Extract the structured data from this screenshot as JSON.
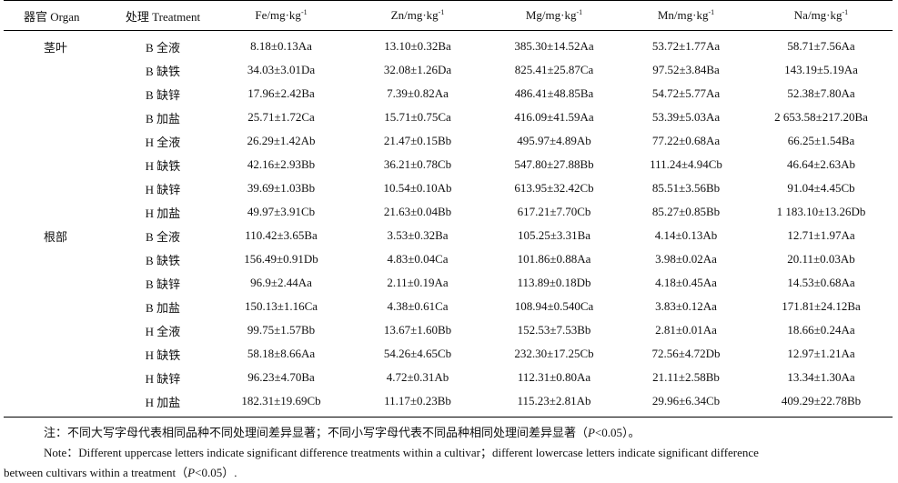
{
  "table": {
    "headers": [
      {
        "main": "器官 Organ",
        "sup": ""
      },
      {
        "main": "处理 Treatment",
        "sup": ""
      },
      {
        "main": "Fe/mg·kg",
        "sup": "-1"
      },
      {
        "main": "Zn/mg·kg",
        "sup": "-1"
      },
      {
        "main": "Mg/mg·kg",
        "sup": "-1"
      },
      {
        "main": "Mn/mg·kg",
        "sup": "-1"
      },
      {
        "main": "Na/mg·kg",
        "sup": "-1"
      }
    ],
    "rows": [
      {
        "organ": "茎叶",
        "treatment": "B 全液",
        "fe": "8.18±0.13Aa",
        "zn": "13.10±0.32Ba",
        "mg": "385.30±14.52Aa",
        "mn": "53.72±1.77Aa",
        "na": "58.71±7.56Aa"
      },
      {
        "organ": "",
        "treatment": "B 缺铁",
        "fe": "34.03±3.01Da",
        "zn": "32.08±1.26Da",
        "mg": "825.41±25.87Ca",
        "mn": "97.52±3.84Ba",
        "na": "143.19±5.19Aa"
      },
      {
        "organ": "",
        "treatment": "B 缺锌",
        "fe": "17.96±2.42Ba",
        "zn": "7.39±0.82Aa",
        "mg": "486.41±48.85Ba",
        "mn": "54.72±5.77Aa",
        "na": "52.38±7.80Aa"
      },
      {
        "organ": "",
        "treatment": "B 加盐",
        "fe": "25.71±1.72Ca",
        "zn": "15.71±0.75Ca",
        "mg": "416.09±41.59Aa",
        "mn": "53.39±5.03Aa",
        "na": "2 653.58±217.20Ba"
      },
      {
        "organ": "",
        "treatment": "H 全液",
        "fe": "26.29±1.42Ab",
        "zn": "21.47±0.15Bb",
        "mg": "495.97±4.89Ab",
        "mn": "77.22±0.68Aa",
        "na": "66.25±1.54Ba"
      },
      {
        "organ": "",
        "treatment": "H 缺铁",
        "fe": "42.16±2.93Bb",
        "zn": "36.21±0.78Cb",
        "mg": "547.80±27.88Bb",
        "mn": "111.24±4.94Cb",
        "na": "46.64±2.63Ab"
      },
      {
        "organ": "",
        "treatment": "H 缺锌",
        "fe": "39.69±1.03Bb",
        "zn": "10.54±0.10Ab",
        "mg": "613.95±32.42Cb",
        "mn": "85.51±3.56Bb",
        "na": "91.04±4.45Cb"
      },
      {
        "organ": "",
        "treatment": "H 加盐",
        "fe": "49.97±3.91Cb",
        "zn": "21.63±0.04Bb",
        "mg": "617.21±7.70Cb",
        "mn": "85.27±0.85Bb",
        "na": "1 183.10±13.26Db"
      },
      {
        "organ": "根部",
        "treatment": "B 全液",
        "fe": "110.42±3.65Ba",
        "zn": "3.53±0.32Ba",
        "mg": "105.25±3.31Ba",
        "mn": "4.14±0.13Ab",
        "na": "12.71±1.97Aa"
      },
      {
        "organ": "",
        "treatment": "B 缺铁",
        "fe": "156.49±0.91Db",
        "zn": "4.83±0.04Ca",
        "mg": "101.86±0.88Aa",
        "mn": "3.98±0.02Aa",
        "na": "20.11±0.03Ab"
      },
      {
        "organ": "",
        "treatment": "B 缺锌",
        "fe": "96.9±2.44Aa",
        "zn": "2.11±0.19Aa",
        "mg": "113.89±0.18Db",
        "mn": "4.18±0.45Aa",
        "na": "14.53±0.68Aa"
      },
      {
        "organ": "",
        "treatment": "B 加盐",
        "fe": "150.13±1.16Ca",
        "zn": "4.38±0.61Ca",
        "mg": "108.94±0.540Ca",
        "mn": "3.83±0.12Aa",
        "na": "171.81±24.12Ba"
      },
      {
        "organ": "",
        "treatment": "H 全液",
        "fe": "99.75±1.57Bb",
        "zn": "13.67±1.60Bb",
        "mg": "152.53±7.53Bb",
        "mn": "2.81±0.01Aa",
        "na": "18.66±0.24Aa"
      },
      {
        "organ": "",
        "treatment": "H 缺铁",
        "fe": "58.18±8.66Aa",
        "zn": "54.26±4.65Cb",
        "mg": "232.30±17.25Cb",
        "mn": "72.56±4.72Db",
        "na": "12.97±1.21Aa"
      },
      {
        "organ": "",
        "treatment": "H 缺锌",
        "fe": "96.23±4.70Ba",
        "zn": "4.72±0.31Ab",
        "mg": "112.31±0.80Aa",
        "mn": "21.11±2.58Bb",
        "na": "13.34±1.30Aa"
      },
      {
        "organ": "",
        "treatment": "H 加盐",
        "fe": "182.31±19.69Cb",
        "zn": "11.17±0.23Bb",
        "mg": "115.23±2.81Ab",
        "mn": "29.96±6.34Cb",
        "na": "409.29±22.78Bb"
      }
    ]
  },
  "notes": {
    "cn_prefix": "注：不同大写字母代表相同品种不同处理间差异显著；不同小写字母代表不同品种相同处理间差异显著（",
    "cn_p": "P",
    "cn_suffix": "<0.05）。",
    "en_line1": "Note：Different uppercase letters indicate significant difference treatments within a cultivar；different lowercase letters indicate significant difference",
    "en_line2_prefix": "between cultivars within a treatment（",
    "en_p": "P",
    "en_suffix": "<0.05）."
  }
}
